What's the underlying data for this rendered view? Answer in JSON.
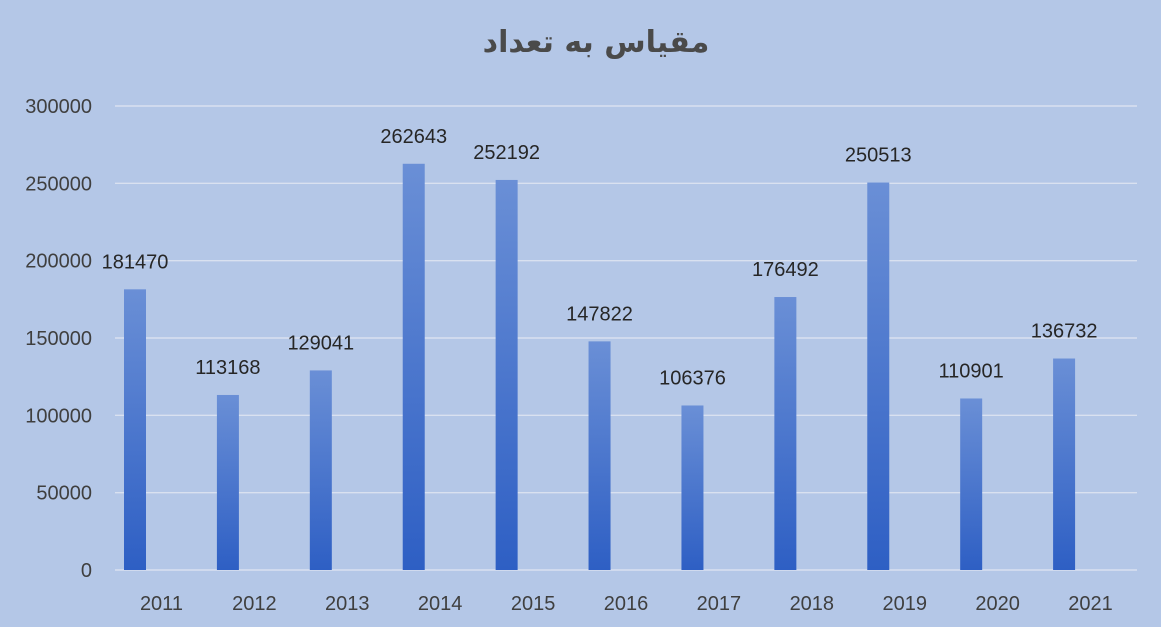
{
  "chart_data": {
    "type": "bar",
    "title": "مقیاس به تعداد",
    "xlabel": "",
    "ylabel": "",
    "categories": [
      "2011",
      "2012",
      "2013",
      "2014",
      "2015",
      "2016",
      "2017",
      "2018",
      "2019",
      "2020",
      "2021"
    ],
    "values": [
      181470,
      113168,
      129041,
      262643,
      252192,
      147822,
      106376,
      176492,
      250513,
      110901,
      136732
    ],
    "ylim": [
      0,
      300000
    ],
    "yticks": [
      0,
      50000,
      100000,
      150000,
      200000,
      250000,
      300000
    ],
    "grid": true,
    "legend": "none",
    "data_labels": true,
    "colors": {
      "background": "#b4c7e7",
      "bar_top": "#6a8fd6",
      "bar_bottom": "#2e5fc4",
      "gridline": "#d9e1f0"
    }
  }
}
